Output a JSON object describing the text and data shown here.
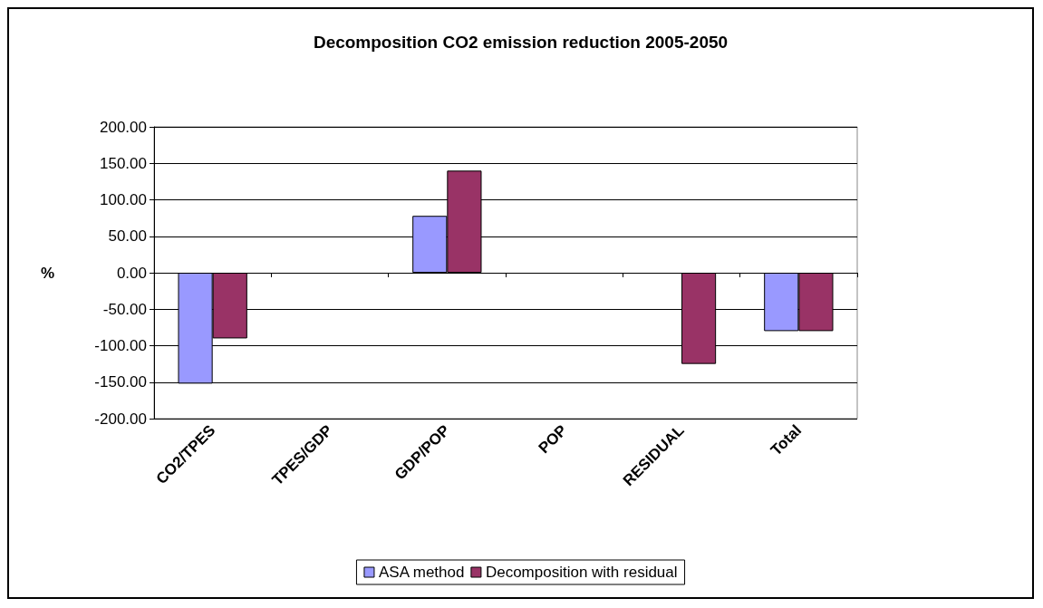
{
  "chart_data": {
    "type": "bar",
    "title": "Decomposition CO2 emission reduction 2005-2050",
    "ylabel": "%",
    "categories": [
      "CO2/TPES",
      "TPES/GDP",
      "GDP/POP",
      "POP",
      "RESIDUAL",
      "Total"
    ],
    "series": [
      {
        "name": "ASA method",
        "color": "#9999ff",
        "values": [
          -152,
          null,
          78,
          null,
          null,
          -80
        ]
      },
      {
        "name": "Decomposition with residual",
        "color": "#993366",
        "values": [
          -90,
          null,
          140,
          null,
          -125,
          -80
        ]
      }
    ],
    "ylim": [
      -200,
      200
    ],
    "yticks": [
      {
        "value": -200,
        "label": "-200.00"
      },
      {
        "value": -150,
        "label": "-150.00"
      },
      {
        "value": -100,
        "label": "-100.00"
      },
      {
        "value": -50,
        "label": "-50.00"
      },
      {
        "value": 0,
        "label": "0.00"
      },
      {
        "value": 50,
        "label": "50.00"
      },
      {
        "value": 100,
        "label": "100.00"
      },
      {
        "value": 150,
        "label": "150.00"
      },
      {
        "value": 200,
        "label": "200.00"
      }
    ],
    "grid": "y",
    "legend": "bottom"
  }
}
